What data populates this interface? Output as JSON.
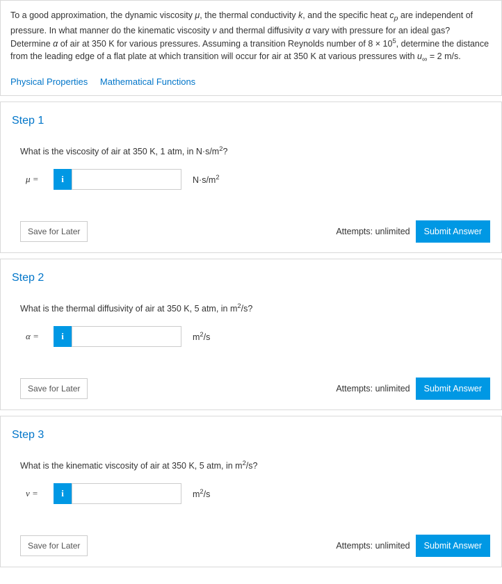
{
  "intro": {
    "text_parts": [
      "To a good approximation, the dynamic viscosity ",
      "μ",
      ", the thermal conductivity ",
      "k",
      ", and the specific heat ",
      "c",
      "p",
      " are independent of pressure. In what manner do the kinematic viscosity ",
      "ν",
      " and thermal diffusivity ",
      "α",
      " vary with pressure for an ideal gas? Determine ",
      "α",
      " of air at 350 K for various pressures. Assuming a transition Reynolds number of 8 × 10",
      "5",
      ", determine the distance from the leading edge of a flat plate at which transition will occur for air at 350 K at various pressures with ",
      "u",
      "∞",
      " =  2 m/s."
    ]
  },
  "links": {
    "phys": "Physical Properties",
    "math": "Mathematical Functions"
  },
  "common": {
    "save": "Save for Later",
    "attempts": "Attempts: unlimited",
    "submit": "Submit Answer",
    "info": "i"
  },
  "steps": [
    {
      "title": "Step 1",
      "question_html": "What is the viscosity of air at 350 K, 1 atm, in N·s/m<sup>2</sup>?",
      "var_html": "<i>μ</i> =",
      "units_html": "N·s/m<sup>2</sup>"
    },
    {
      "title": "Step 2",
      "question_html": "What is the thermal diffusivity of air at 350 K, 5 atm, in m<sup>2</sup>/s?",
      "var_html": "<i>α</i> =",
      "units_html": "m<sup>2</sup>/s"
    },
    {
      "title": "Step 3",
      "question_html": "What is the kinematic viscosity of air at 350 K, 5 atm, in m<sup>2</sup>/s?",
      "var_html": "<i>ν</i> =",
      "units_html": "m<sup>2</sup>/s"
    }
  ]
}
